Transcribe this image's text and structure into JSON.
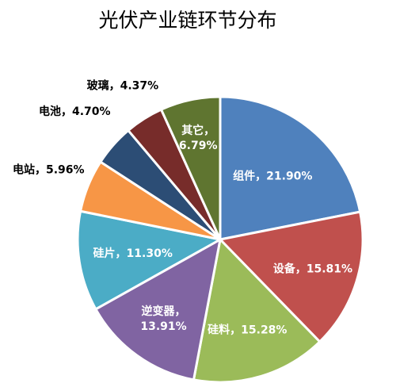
{
  "chart_data": {
    "type": "pie",
    "title": "光伏产业链环节分布",
    "slices": [
      {
        "label": "组件，21.90%",
        "value": 21.9,
        "color": "#4f81bd"
      },
      {
        "label": "设备，15.81%",
        "value": 15.81,
        "color": "#c0504d"
      },
      {
        "label": "硅料，15.28%",
        "value": 15.28,
        "color": "#9bbb59"
      },
      {
        "label": "逆变器，\n13.91%",
        "value": 13.91,
        "color": "#8064a2"
      },
      {
        "label": "硅片，11.30%",
        "value": 11.3,
        "color": "#4bacc6"
      },
      {
        "label": "电站，5.96%",
        "value": 5.96,
        "color": "#f79646"
      },
      {
        "label": "电池，4.70%",
        "value": 4.7,
        "color": "#2c4d75"
      },
      {
        "label": "玻璃，4.37%",
        "value": 4.37,
        "color": "#772c2a"
      },
      {
        "label": "其它，\n6.79%",
        "value": 6.79,
        "color": "#5f7530"
      }
    ]
  }
}
